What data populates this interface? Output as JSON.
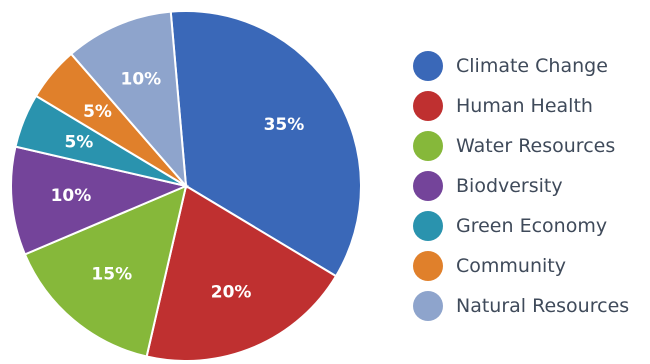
{
  "chart_data": {
    "type": "pie",
    "categories": [
      "Climate Change",
      "Human Health",
      "Water Resources",
      "Biodversity",
      "Green Economy",
      "Community",
      "Natural Resources"
    ],
    "values": [
      35,
      20,
      15,
      10,
      5,
      5,
      10
    ],
    "labels": [
      "35%",
      "20%",
      "15%",
      "10%",
      "5%",
      "5%",
      "10%"
    ],
    "colors": [
      "#3a68b8",
      "#bf3030",
      "#86b83a",
      "#74449a",
      "#2a93ae",
      "#e0802b",
      "#8ea4cc"
    ],
    "start_angle_deg": -5,
    "direction": "clockwise",
    "legend_position": "right",
    "title": "",
    "xlabel": "",
    "ylabel": ""
  }
}
